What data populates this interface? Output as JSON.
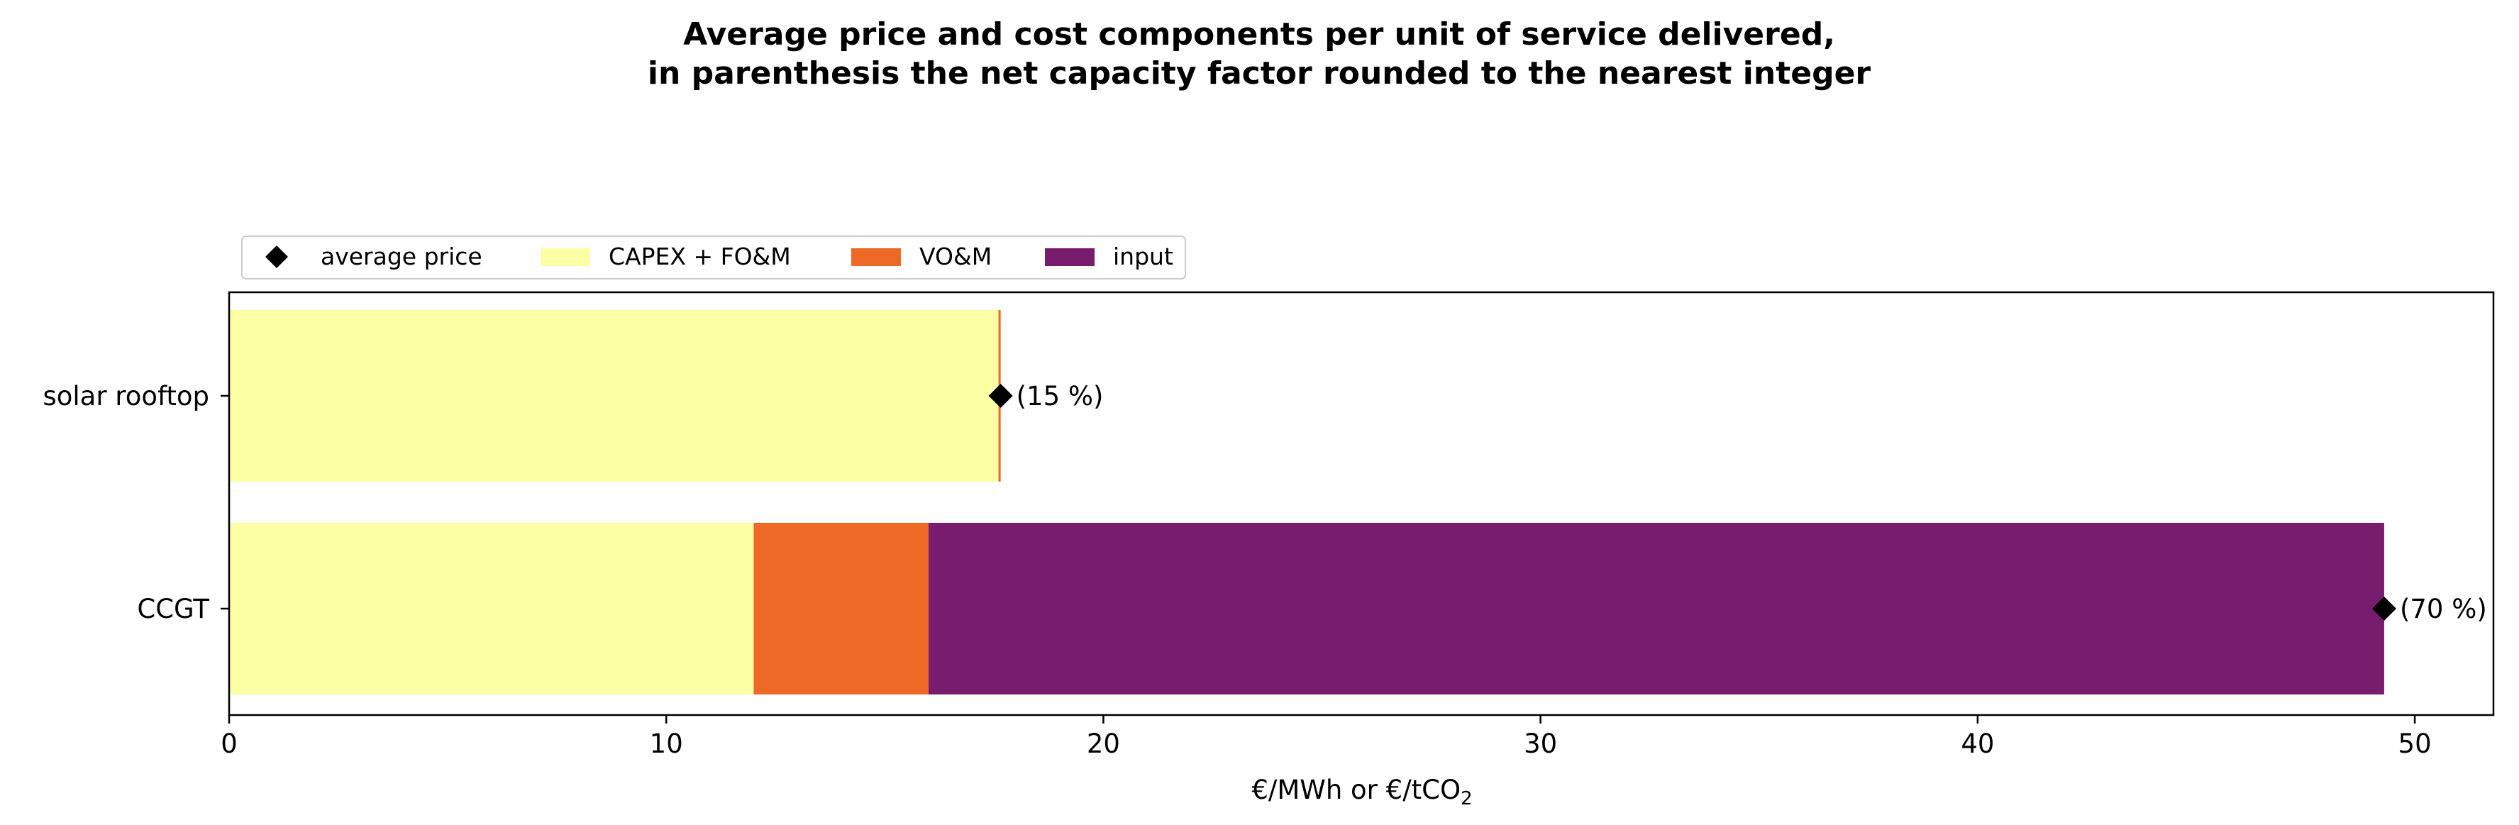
{
  "chart_data": {
    "type": "bar",
    "orientation": "horizontal",
    "stacked": true,
    "title_lines": [
      "Average price and cost components per unit of service delivered,",
      "in parenthesis the net capacity factor rounded to the nearest integer"
    ],
    "xlabel": "€/MWh or €/tCO",
    "xlabel_subscript": "2",
    "ylabel": "",
    "xlim": [
      0,
      51.8
    ],
    "xticks": [
      0,
      10,
      20,
      30,
      40,
      50
    ],
    "categories": [
      "solar rooftop",
      "CCGT"
    ],
    "series": [
      {
        "name": "CAPEX + FO&M",
        "color": "#fcffa4",
        "values": [
          17.6,
          12.0
        ]
      },
      {
        "name": "VO&M",
        "color": "#ed6925",
        "values": [
          0.05,
          4.0
        ]
      },
      {
        "name": "input",
        "color": "#781c6d",
        "values": [
          0.0,
          33.3
        ]
      }
    ],
    "average_price": {
      "name": "average price",
      "color": "#000000",
      "marker": "diamond",
      "values": [
        17.65,
        49.3
      ]
    },
    "annotations": [
      "(15 %)",
      "(70 %)"
    ],
    "legend": {
      "placement": "top-left, above axes",
      "entries": [
        "average price",
        "CAPEX + FO&M",
        "VO&M",
        "input"
      ]
    },
    "grid": false
  }
}
